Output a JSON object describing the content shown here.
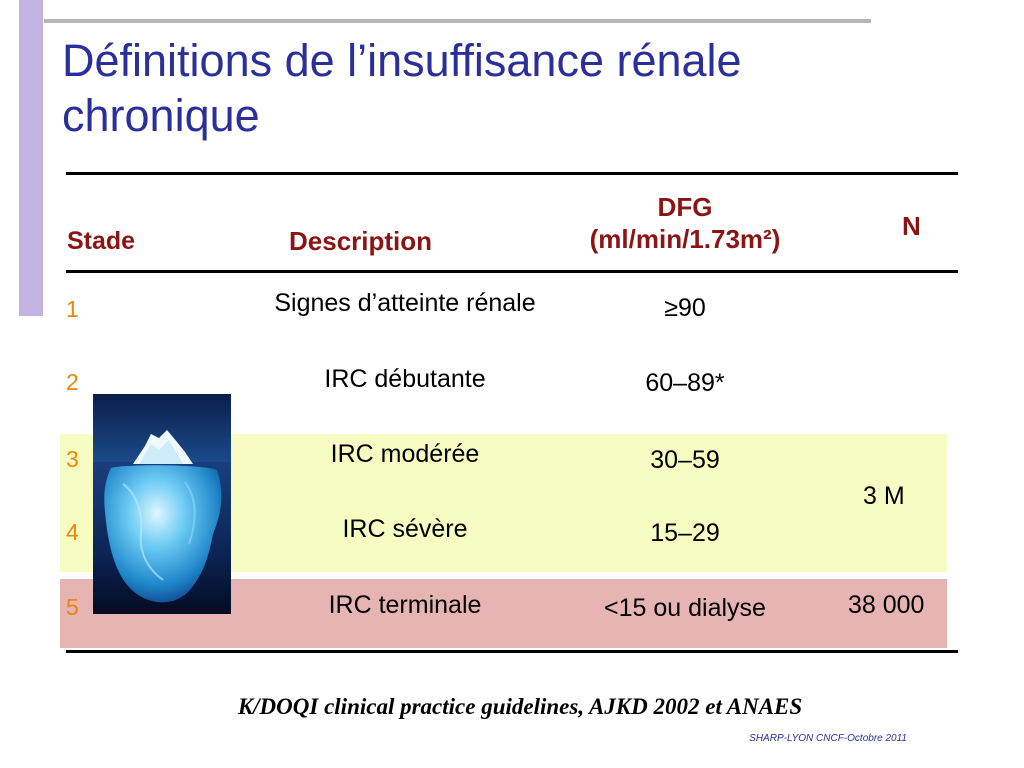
{
  "title": {
    "line1": "Définitions de l’insuffisance rénale",
    "line2": "chronique"
  },
  "table": {
    "headers": {
      "stade": "Stade",
      "description": "Description",
      "dfg_line1": "DFG",
      "dfg_line2": "(ml/min/1.73m²)",
      "n": "N"
    },
    "rows": [
      {
        "stade": "1",
        "description": "Signes d’atteinte rénale",
        "dfg": "≥90"
      },
      {
        "stade": "2",
        "description": "IRC débutante",
        "dfg": "60–89*"
      },
      {
        "stade": "3",
        "description": "IRC modérée",
        "dfg": "30–59"
      },
      {
        "stade": "4",
        "description": "IRC sévère",
        "dfg": "15–29"
      },
      {
        "stade": "5",
        "description": "IRC terminale",
        "dfg": "<15 ou dialyse"
      }
    ],
    "n_values": {
      "stages_3_4": "3 M",
      "stage_5": "38 000"
    }
  },
  "image": {
    "icon": "iceberg-image"
  },
  "citation": "K/DOQI clinical practice guidelines, AJKD 2002 et ANAES",
  "footer": "SHARP-LYON CNCF-Octobre 2011",
  "colors": {
    "title": "#2b2f9a",
    "header": "#8b1414",
    "stage_number": "#e8870a",
    "yellow_band": "#f7fcc2",
    "pink_band": "#e7b4b4",
    "left_bar": "#c3b3e2"
  }
}
